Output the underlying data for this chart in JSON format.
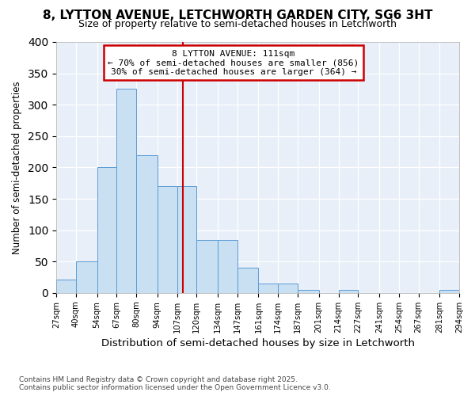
{
  "title": "8, LYTTON AVENUE, LETCHWORTH GARDEN CITY, SG6 3HT",
  "subtitle": "Size of property relative to semi-detached houses in Letchworth",
  "xlabel": "Distribution of semi-detached houses by size in Letchworth",
  "ylabel": "Number of semi-detached properties",
  "bar_edges": [
    27,
    40,
    54,
    67,
    80,
    94,
    107,
    120,
    134,
    147,
    161,
    174,
    187,
    201,
    214,
    227,
    241,
    254,
    267,
    281,
    294
  ],
  "bar_heights": [
    22,
    50,
    200,
    325,
    220,
    170,
    170,
    85,
    85,
    40,
    15,
    15,
    5,
    0,
    5,
    0,
    0,
    0,
    0,
    5
  ],
  "bar_color": "#c9dff2",
  "bar_edgecolor": "#5b9bd5",
  "vline_x": 111,
  "vline_color": "#cc0000",
  "annotation_title": "8 LYTTON AVENUE: 111sqm",
  "annotation_line1": "← 70% of semi-detached houses are smaller (856)",
  "annotation_line2": "30% of semi-detached houses are larger (364) →",
  "footnote1": "Contains HM Land Registry data © Crown copyright and database right 2025.",
  "footnote2": "Contains public sector information licensed under the Open Government Licence v3.0.",
  "fig_bg_color": "#ffffff",
  "plot_bg_color": "#e8eff8",
  "ylim": [
    0,
    400
  ],
  "yticks": [
    0,
    50,
    100,
    150,
    200,
    250,
    300,
    350,
    400
  ],
  "tick_labels": [
    "27sqm",
    "40sqm",
    "54sqm",
    "67sqm",
    "80sqm",
    "94sqm",
    "107sqm",
    "120sqm",
    "134sqm",
    "147sqm",
    "161sqm",
    "174sqm",
    "187sqm",
    "201sqm",
    "214sqm",
    "227sqm",
    "241sqm",
    "254sqm",
    "267sqm",
    "281sqm",
    "294sqm"
  ]
}
